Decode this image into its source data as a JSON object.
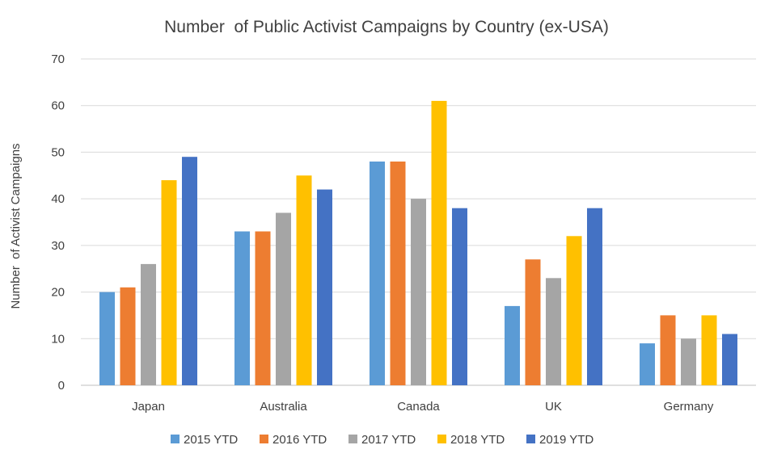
{
  "chart_data": {
    "type": "bar",
    "title": "Number  of Public Activist Campaigns by Country (ex-USA)",
    "xlabel": "",
    "ylabel": "Number  of Activist Campaigns",
    "ylim": [
      0,
      70
    ],
    "yticks": [
      0,
      10,
      20,
      30,
      40,
      50,
      60,
      70
    ],
    "grid": true,
    "legend_position": "bottom",
    "categories": [
      "Japan",
      "Australia",
      "Canada",
      "UK",
      "Germany"
    ],
    "series": [
      {
        "name": "2015 YTD",
        "color": "#5b9bd5",
        "values": [
          20,
          33,
          48,
          17,
          9
        ]
      },
      {
        "name": "2016 YTD",
        "color": "#ed7d31",
        "values": [
          21,
          33,
          48,
          27,
          15
        ]
      },
      {
        "name": "2017 YTD",
        "color": "#a5a5a5",
        "values": [
          26,
          37,
          40,
          23,
          10
        ]
      },
      {
        "name": "2018 YTD",
        "color": "#ffc000",
        "values": [
          44,
          45,
          61,
          32,
          15
        ]
      },
      {
        "name": "2019 YTD",
        "color": "#4472c4",
        "values": [
          49,
          42,
          38,
          38,
          11
        ]
      }
    ]
  }
}
